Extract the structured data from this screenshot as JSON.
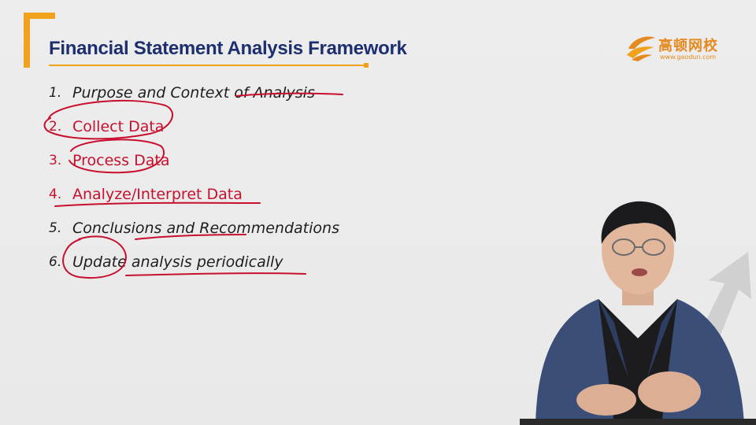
{
  "slide": {
    "title": "Financial Statement Analysis Framework",
    "items": [
      {
        "num": "1.",
        "text": "Purpose and Context of Analysis",
        "color": "#1e1e1e"
      },
      {
        "num": "2.",
        "text": "Collect Data",
        "color": "#c8102e"
      },
      {
        "num": "3.",
        "text": "Process Data",
        "color": "#c8102e"
      },
      {
        "num": "4.",
        "text": "Analyze/Interpret Data",
        "color": "#c8102e"
      },
      {
        "num": "5.",
        "text": "Conclusions and Recommendations",
        "color": "#1e1e1e"
      },
      {
        "num": "6.",
        "text": "Update analysis periodically",
        "color": "#1e1e1e"
      }
    ]
  },
  "logo": {
    "name": "高顿网校",
    "url": "www.gaodun.com",
    "color": "#e58a1f"
  },
  "colors": {
    "title": "#1d2f6e",
    "accent": "#f0a21c",
    "annotation": "#c8102e"
  }
}
